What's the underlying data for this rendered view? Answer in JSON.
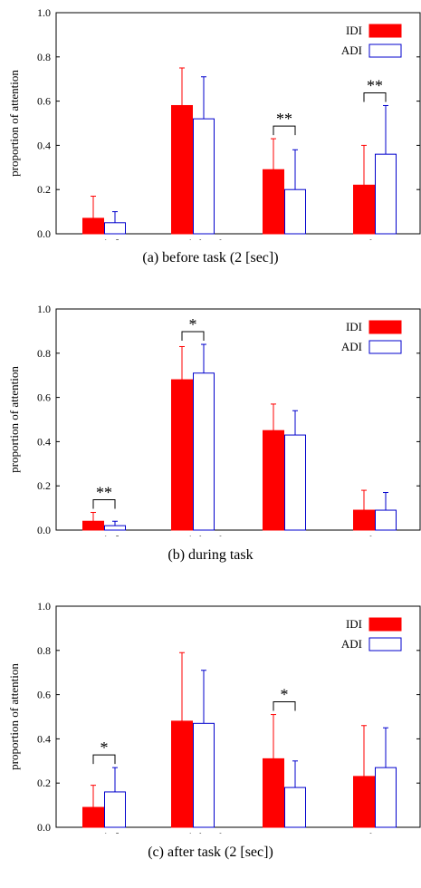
{
  "colors": {
    "IDI": "#ff0000",
    "ADI": "#0000cc",
    "error": "#ff0000",
    "errorADI": "#0000cc"
  },
  "chart_data": [
    {
      "type": "bar",
      "caption": "(a)  before task (2 [sec])",
      "ylabel": "proportion of attention",
      "ylim": [
        0,
        1.0
      ],
      "yticks": [
        "0.0",
        "0.2",
        "0.4",
        "0.6",
        "0.8",
        "1.0"
      ],
      "categories": [
        "parent’s face",
        "parent’s hands",
        "cups",
        "others"
      ],
      "series": [
        {
          "name": "IDI",
          "values": [
            0.07,
            0.58,
            0.29,
            0.22
          ],
          "err": [
            0.1,
            0.17,
            0.14,
            0.18
          ]
        },
        {
          "name": "ADI",
          "values": [
            0.05,
            0.52,
            0.2,
            0.36
          ],
          "err": [
            0.05,
            0.19,
            0.18,
            0.22
          ]
        }
      ],
      "significance": [
        {
          "category": 2,
          "label": "**"
        },
        {
          "category": 3,
          "label": "**"
        }
      ]
    },
    {
      "type": "bar",
      "caption": "(b)  during task",
      "ylabel": "proportion of attention",
      "ylim": [
        0,
        1.0
      ],
      "yticks": [
        "0.0",
        "0.2",
        "0.4",
        "0.6",
        "0.8",
        "1.0"
      ],
      "categories": [
        "parent’s face",
        "parent’s hands",
        "cups",
        "others"
      ],
      "series": [
        {
          "name": "IDI",
          "values": [
            0.04,
            0.68,
            0.45,
            0.09
          ],
          "err": [
            0.04,
            0.15,
            0.12,
            0.09
          ]
        },
        {
          "name": "ADI",
          "values": [
            0.02,
            0.71,
            0.43,
            0.09
          ],
          "err": [
            0.02,
            0.13,
            0.11,
            0.08
          ]
        }
      ],
      "significance": [
        {
          "category": 0,
          "label": "**"
        },
        {
          "category": 1,
          "label": "*"
        }
      ]
    },
    {
      "type": "bar",
      "caption": "(c)  after task (2 [sec])",
      "ylabel": "proportion of attention",
      "ylim": [
        0,
        1.0
      ],
      "yticks": [
        "0.0",
        "0.2",
        "0.4",
        "0.6",
        "0.8",
        "1.0"
      ],
      "categories": [
        "parent’s face",
        "parent’s hands",
        "cups",
        "others"
      ],
      "series": [
        {
          "name": "IDI",
          "values": [
            0.09,
            0.48,
            0.31,
            0.23
          ],
          "err": [
            0.1,
            0.31,
            0.2,
            0.23
          ]
        },
        {
          "name": "ADI",
          "values": [
            0.16,
            0.47,
            0.18,
            0.27
          ],
          "err": [
            0.11,
            0.24,
            0.12,
            0.18
          ]
        }
      ],
      "significance": [
        {
          "category": 0,
          "label": "*"
        },
        {
          "category": 2,
          "label": "*"
        }
      ]
    }
  ]
}
